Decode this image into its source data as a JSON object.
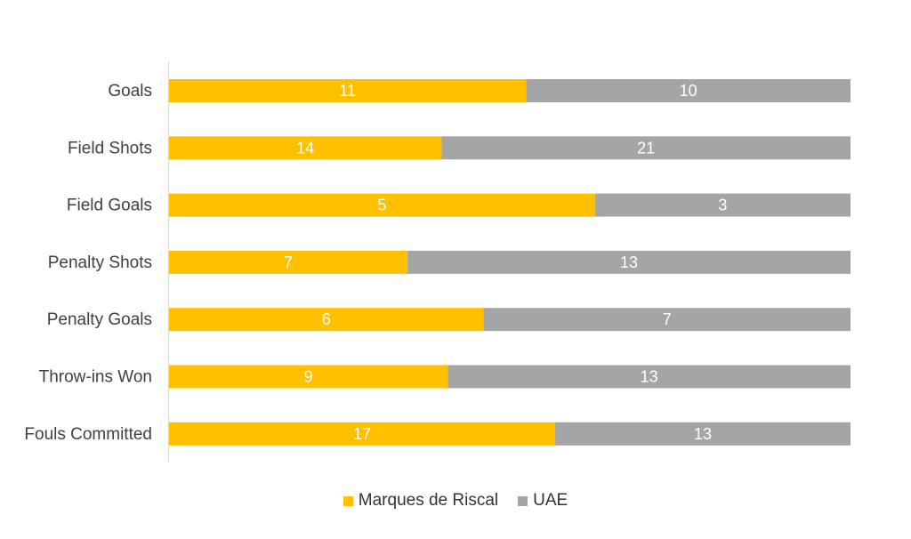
{
  "chart_data": {
    "type": "bar",
    "orientation": "horizontal",
    "stacked": "100%",
    "categories": [
      "Goals",
      "Field Shots",
      "Field Goals",
      "Penalty Shots",
      "Penalty Goals",
      "Throw-ins Won",
      "Fouls Committed"
    ],
    "series": [
      {
        "name": "Marques de Riscal",
        "color": "#FFC000",
        "values": [
          11,
          14,
          5,
          7,
          6,
          9,
          17
        ]
      },
      {
        "name": "UAE",
        "color": "#A5A5A5",
        "values": [
          10,
          21,
          3,
          13,
          7,
          13,
          13
        ]
      }
    ],
    "title": "",
    "xlabel": "",
    "ylabel": "",
    "grid": false,
    "legend_position": "bottom"
  }
}
